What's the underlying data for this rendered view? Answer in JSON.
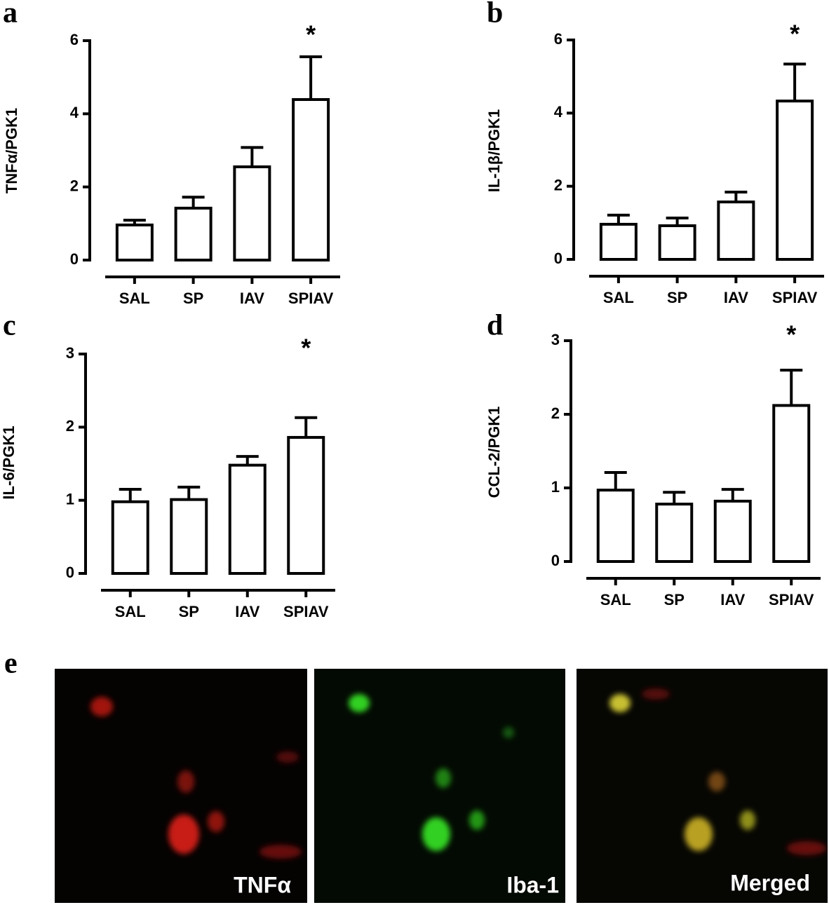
{
  "chart_data": [
    {
      "type": "bar",
      "panel_label": "a",
      "y_label": "TNFα/PGK1",
      "categories": [
        "SAL",
        "SP",
        "IAV",
        "SPIAV"
      ],
      "values": [
        0.96,
        1.42,
        2.55,
        4.39
      ],
      "errors": [
        0.13,
        0.3,
        0.53,
        1.17
      ],
      "annotation": "*",
      "color": "#ffffff",
      "ylim": [
        0,
        6
      ],
      "yticks": [
        0,
        2,
        4,
        6
      ]
    },
    {
      "type": "bar",
      "panel_label": "b",
      "y_label": "IL-1β/PGK1",
      "categories": [
        "SAL",
        "SP",
        "IAV",
        "SPIAV"
      ],
      "values": [
        0.96,
        0.92,
        1.57,
        4.33
      ],
      "errors": [
        0.25,
        0.21,
        0.27,
        1.01
      ],
      "annotation": "*",
      "color": "#ffffff",
      "ylim": [
        0,
        6
      ],
      "yticks": [
        0,
        2,
        4,
        6
      ]
    },
    {
      "type": "bar",
      "panel_label": "c",
      "y_label": "IL-6/PGK1",
      "categories": [
        "SAL",
        "SP",
        "IAV",
        "SPIAV"
      ],
      "values": [
        0.98,
        1.01,
        1.48,
        1.86
      ],
      "errors": [
        0.17,
        0.17,
        0.12,
        0.27
      ],
      "annotation": "*",
      "color": "#ffffff",
      "ylim": [
        0,
        3
      ],
      "yticks": [
        0,
        1,
        2,
        3
      ]
    },
    {
      "type": "bar",
      "panel_label": "d",
      "y_label": "CCL-2/PGK1",
      "categories": [
        "SAL",
        "SP",
        "IAV",
        "SPIAV"
      ],
      "values": [
        0.97,
        0.78,
        0.82,
        2.12
      ],
      "errors": [
        0.24,
        0.16,
        0.16,
        0.48
      ],
      "annotation": "*",
      "color": "#ffffff",
      "ylim": [
        0,
        3
      ],
      "yticks": [
        0,
        1,
        2,
        3
      ]
    }
  ],
  "images": {
    "panel_label": "e",
    "captions": [
      "TNFα",
      "Iba-1",
      "Merged"
    ]
  }
}
